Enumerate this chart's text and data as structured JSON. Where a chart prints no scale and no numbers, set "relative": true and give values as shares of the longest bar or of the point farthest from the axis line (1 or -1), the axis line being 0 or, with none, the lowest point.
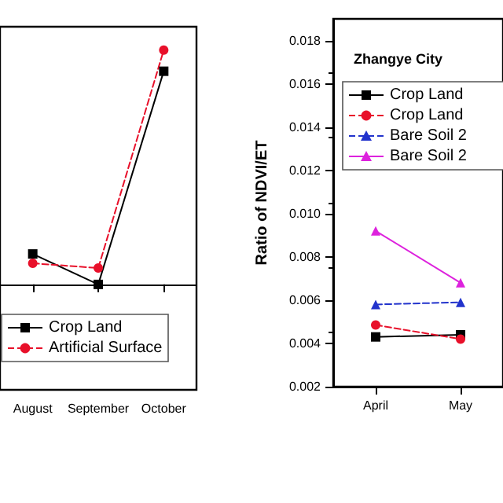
{
  "chart_data": [
    {
      "type": "line",
      "relative": true,
      "categories": [
        "August",
        "September",
        "October"
      ],
      "legend": "bottom",
      "grid": false,
      "series": [
        {
          "name": "Crop Land",
          "color": "#000000",
          "marker": "square",
          "line_style": "solid",
          "values": [
            0.13,
            0,
            0.91
          ]
        },
        {
          "name": "Artificial Surface",
          "color": "#e8102a",
          "marker": "circle",
          "line_style": "dashed",
          "values": [
            0.09,
            0.07,
            1.0
          ]
        }
      ]
    },
    {
      "type": "line",
      "title": "Zhangye City",
      "ylabel": "Ratio of NDVI/ET",
      "categories": [
        "April",
        "May"
      ],
      "ylim": [
        0.002,
        0.019
      ],
      "yticks": [
        {
          "value": 0.002,
          "label": "0.002"
        },
        {
          "value": 0.004,
          "label": "0.004"
        },
        {
          "value": 0.006,
          "label": "0.006"
        },
        {
          "value": 0.008,
          "label": "0.008"
        },
        {
          "value": 0.01,
          "label": "0.010"
        },
        {
          "value": 0.012,
          "label": "0.012"
        },
        {
          "value": 0.014,
          "label": "0.014"
        },
        {
          "value": 0.016,
          "label": "0.016"
        },
        {
          "value": 0.018,
          "label": "0.018"
        }
      ],
      "legend": "top",
      "grid": false,
      "series": [
        {
          "name": "Crop Land",
          "color": "#000000",
          "marker": "square",
          "line_style": "solid",
          "values": [
            0.0043,
            0.0044
          ]
        },
        {
          "name": "Crop Land",
          "color": "#e8102a",
          "marker": "circle",
          "line_style": "dashed",
          "values": [
            0.00485,
            0.0042
          ]
        },
        {
          "name": "Bare Soil 2",
          "color": "#2233cc",
          "marker": "triangle",
          "line_style": "dashed",
          "values": [
            0.0058,
            0.0059
          ]
        },
        {
          "name": "Bare Soil 2",
          "color": "#dd22dd",
          "marker": "triangle",
          "line_style": "solid",
          "values": [
            0.0092,
            0.0068
          ]
        }
      ]
    }
  ]
}
